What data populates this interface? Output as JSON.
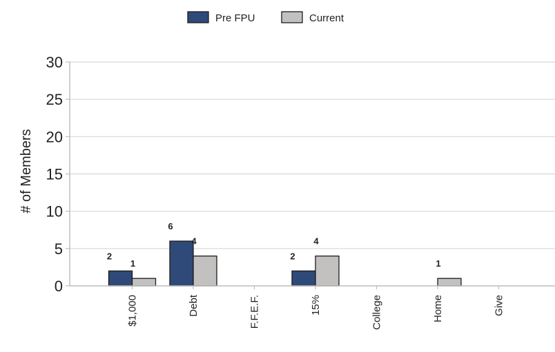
{
  "chart_data": {
    "type": "bar",
    "categories": [
      "$1,000",
      "Debt",
      "F.F.E.F.",
      "15%",
      "College",
      "Home",
      "Give"
    ],
    "series": [
      {
        "name": "Pre FPU",
        "values": [
          2,
          6,
          null,
          2,
          null,
          null,
          null
        ],
        "color": "#2f4a78"
      },
      {
        "name": "Current",
        "values": [
          1,
          4,
          null,
          4,
          null,
          1,
          null
        ],
        "color": "#c3c0c0"
      }
    ],
    "xlabel": "",
    "ylabel": "# of Members",
    "ylim": [
      0,
      30
    ],
    "yticks": [
      0,
      5,
      10,
      15,
      20,
      25,
      30
    ],
    "grid": true,
    "legend": "top-center"
  }
}
